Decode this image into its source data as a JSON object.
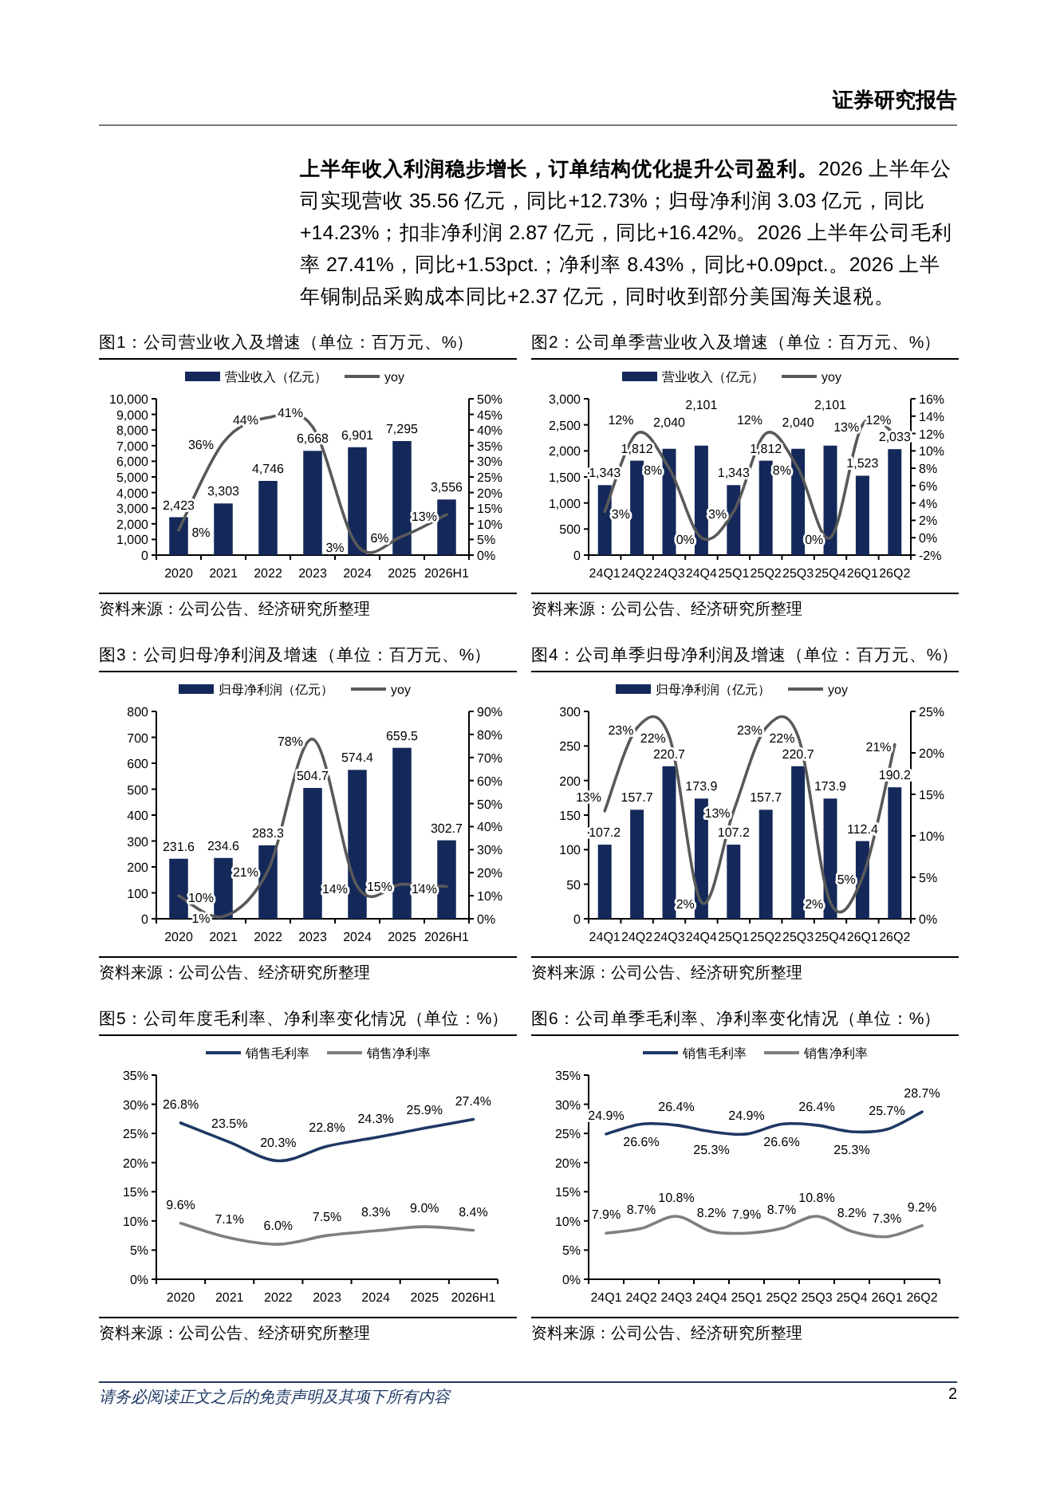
{
  "chart_data": [
    {
      "type": "other",
      "annotations": [
        "证券研究报告",
        "上半年收入利润稳步增长，订单结构优化提升公司盈利。",
        "2026 上半年公司实现营收 35.56 亿元，同比+12.73%；归母净利润 3.03 亿元，同比+14.23%；扣非净利润 2.87 亿元，同比+16.42%。2026 上半年公司毛利率 27.41%，同比+1.53pct.；净利率 8.43%，同比+0.09pct.。2026 上半年铜制品采购成本同比+2.37 亿元，同时收到部分美国海关退税。",
        "请务必阅读正文之后的免责声明及其项下所有内容",
        "2"
      ]
    },
    {
      "type": "bar",
      "title": "图1：公司营业收入及增速（单位：百万元、%）",
      "categories": [
        "2020",
        "2021",
        "2022",
        "2023",
        "2024",
        "2025",
        "2026H1"
      ],
      "series": [
        {
          "name": "营业收入（亿元）",
          "color": "#14295a",
          "values": [
            2423,
            3303,
            4746,
            6668,
            6901,
            7295,
            3556
          ],
          "value_labels": [
            "2,423",
            "3,303",
            "4,746",
            "6,668",
            "6,901",
            "7,295",
            "3,556"
          ]
        },
        {
          "name": "yoy",
          "type": "line",
          "axis": "y2",
          "color": "#595959",
          "values": [
            8,
            36,
            44,
            41,
            3,
            6,
            13
          ],
          "value_labels": [
            "8%",
            "36%",
            "44%",
            "41%",
            "3%",
            "6%",
            "13%"
          ]
        }
      ],
      "ylim": [
        0,
        10000
      ],
      "yticks": [
        0,
        {
          "value": 1000,
          "label": "1,000"
        },
        {
          "value": 2000,
          "label": "2,000"
        },
        {
          "value": 3000,
          "label": "3,000"
        },
        {
          "value": 4000,
          "label": "4,000"
        },
        {
          "value": 5000,
          "label": "5,000"
        },
        {
          "value": 6000,
          "label": "6,000"
        },
        {
          "value": 7000,
          "label": "7,000"
        },
        {
          "value": 8000,
          "label": "8,000"
        },
        {
          "value": 9000,
          "label": "9,000"
        },
        {
          "value": 10000,
          "label": "10,000"
        }
      ],
      "y2lim": [
        0,
        50
      ],
      "y2ticks": [
        {
          "value": 0,
          "label": "0%"
        },
        {
          "value": 5,
          "label": "5%"
        },
        {
          "value": 10,
          "label": "10%"
        },
        {
          "value": 15,
          "label": "15%"
        },
        {
          "value": 20,
          "label": "20%"
        },
        {
          "value": 25,
          "label": "25%"
        },
        {
          "value": 30,
          "label": "30%"
        },
        {
          "value": 35,
          "label": "35%"
        },
        {
          "value": 40,
          "label": "40%"
        },
        {
          "value": 45,
          "label": "45%"
        },
        {
          "value": 50,
          "label": "50%"
        }
      ],
      "legend": "top",
      "annotations": [
        "资料来源：公司公告、经济研究所整理"
      ]
    },
    {
      "type": "bar",
      "title": "图2：公司单季营业收入及增速（单位：百万元、%）",
      "categories": [
        "24Q1",
        "24Q2",
        "24Q3",
        "24Q4",
        "25Q1",
        "25Q2",
        "25Q3",
        "25Q4",
        "26Q1",
        "26Q2"
      ],
      "series": [
        {
          "name": "营业收入（亿元）",
          "color": "#14295a",
          "values": [
            1343,
            1812,
            2040,
            2101,
            1343,
            1812,
            2040,
            2101,
            1523,
            2033
          ],
          "value_labels": [
            "1,343",
            "1,812",
            "2,040",
            "2,101",
            "1,343",
            "1,812",
            "2,040",
            "2,101",
            "1,523",
            "2,033"
          ]
        },
        {
          "name": "yoy",
          "type": "line",
          "axis": "y2",
          "color": "#595959",
          "values": [
            3,
            12,
            8,
            0,
            3,
            12,
            8,
            0,
            13,
            12
          ],
          "value_labels": [
            "3%",
            "12%",
            "8%",
            "0%",
            "3%",
            "12%",
            "8%",
            "0%",
            "13%",
            "12%"
          ]
        }
      ],
      "ylim": [
        0,
        3000
      ],
      "yticks": [
        0,
        500,
        {
          "value": 1000,
          "label": "1,000"
        },
        {
          "value": 1500,
          "label": "1,500"
        },
        {
          "value": 2000,
          "label": "2,000"
        },
        {
          "value": 2500,
          "label": "2,500"
        },
        {
          "value": 3000,
          "label": "3,000"
        }
      ],
      "y2lim": [
        -2,
        16
      ],
      "y2ticks": [
        {
          "value": -2,
          "label": "-2%"
        },
        {
          "value": 0,
          "label": "0%"
        },
        {
          "value": 2,
          "label": "2%"
        },
        {
          "value": 4,
          "label": "4%"
        },
        {
          "value": 6,
          "label": "6%"
        },
        {
          "value": 8,
          "label": "8%"
        },
        {
          "value": 10,
          "label": "10%"
        },
        {
          "value": 12,
          "label": "12%"
        },
        {
          "value": 14,
          "label": "14%"
        },
        {
          "value": 16,
          "label": "16%"
        }
      ],
      "legend": "top",
      "annotations": [
        "资料来源：公司公告、经济研究所整理"
      ]
    },
    {
      "type": "bar",
      "title": "图3：公司归母净利润及增速（单位：百万元、%）",
      "categories": [
        "2020",
        "2021",
        "2022",
        "2023",
        "2024",
        "2025",
        "2026H1"
      ],
      "series": [
        {
          "name": "归母净利润（亿元）",
          "color": "#14295a",
          "values": [
            231.6,
            234.6,
            283.3,
            504.7,
            574.4,
            659.5,
            302.7
          ],
          "value_labels": [
            "231.6",
            "234.6",
            "283.3",
            "504.7",
            "574.4",
            "659.5",
            "302.7"
          ]
        },
        {
          "name": "yoy",
          "type": "line",
          "axis": "y2",
          "color": "#595959",
          "values": [
            10,
            1,
            21,
            78,
            14,
            15,
            14
          ],
          "value_labels": [
            "10%",
            "1%",
            "21%",
            "78%",
            "14%",
            "15%",
            "14%"
          ]
        }
      ],
      "ylim": [
        0,
        800
      ],
      "yticks": [
        0,
        100,
        200,
        300,
        400,
        500,
        600,
        700,
        800
      ],
      "y2lim": [
        0,
        90
      ],
      "y2ticks": [
        {
          "value": 0,
          "label": "0%"
        },
        {
          "value": 10,
          "label": "10%"
        },
        {
          "value": 20,
          "label": "20%"
        },
        {
          "value": 30,
          "label": "30%"
        },
        {
          "value": 40,
          "label": "40%"
        },
        {
          "value": 50,
          "label": "50%"
        },
        {
          "value": 60,
          "label": "60%"
        },
        {
          "value": 70,
          "label": "70%"
        },
        {
          "value": 80,
          "label": "80%"
        },
        {
          "value": 90,
          "label": "90%"
        }
      ],
      "legend": "top",
      "annotations": [
        "资料来源：公司公告、经济研究所整理"
      ]
    },
    {
      "type": "bar",
      "title": "图4：公司单季归母净利润及增速（单位：百万元、%）",
      "categories": [
        "24Q1",
        "24Q2",
        "24Q3",
        "24Q4",
        "25Q1",
        "25Q2",
        "25Q3",
        "25Q4",
        "26Q1",
        "26Q2"
      ],
      "series": [
        {
          "name": "归母净利润（亿元）",
          "color": "#14295a",
          "values": [
            107.2,
            157.7,
            220.7,
            173.9,
            107.2,
            157.7,
            220.7,
            173.9,
            112.4,
            190.2
          ],
          "value_labels": [
            "107.2",
            "157.7",
            "220.7",
            "173.9",
            "107.2",
            "157.7",
            "220.7",
            "173.9",
            "112.4",
            "190.2"
          ]
        },
        {
          "name": "yoy",
          "type": "line",
          "axis": "y2",
          "color": "#595959",
          "values": [
            13,
            23,
            22,
            2,
            13,
            23,
            22,
            2,
            5,
            21
          ],
          "value_labels": [
            "13%",
            "23%",
            "22%",
            "2%",
            "13%",
            "23%",
            "22%",
            "2%",
            "5%",
            "21%"
          ]
        }
      ],
      "ylim": [
        0,
        300
      ],
      "yticks": [
        0,
        50,
        100,
        150,
        200,
        250,
        300
      ],
      "y2lim": [
        0,
        25
      ],
      "y2ticks": [
        {
          "value": 0,
          "label": "0%"
        },
        {
          "value": 5,
          "label": "5%"
        },
        {
          "value": 10,
          "label": "10%"
        },
        {
          "value": 15,
          "label": "15%"
        },
        {
          "value": 20,
          "label": "20%"
        },
        {
          "value": 25,
          "label": "25%"
        }
      ],
      "legend": "top",
      "annotations": [
        "资料来源：公司公告、经济研究所整理"
      ]
    },
    {
      "type": "line",
      "title": "图5：公司年度毛利率、净利率变化情况（单位：%）",
      "categories": [
        "2020",
        "2021",
        "2022",
        "2023",
        "2024",
        "2025",
        "2026H1"
      ],
      "series": [
        {
          "name": "销售毛利率",
          "color": "#1f3864",
          "values": [
            26.8,
            23.5,
            20.3,
            22.8,
            24.3,
            25.9,
            27.4
          ],
          "value_labels": [
            "26.8%",
            "23.5%",
            "20.3%",
            "22.8%",
            "24.3%",
            "25.9%",
            "27.4%"
          ]
        },
        {
          "name": "销售净利率",
          "color": "#7f7f7f",
          "values": [
            9.6,
            7.1,
            6.0,
            7.5,
            8.3,
            9.0,
            8.4
          ],
          "value_labels": [
            "9.6%",
            "7.1%",
            "6.0%",
            "7.5%",
            "8.3%",
            "9.0%",
            "8.4%"
          ]
        }
      ],
      "ylim": [
        0,
        35
      ],
      "yticks": [
        {
          "value": 0,
          "label": "0%"
        },
        {
          "value": 5,
          "label": "5%"
        },
        {
          "value": 10,
          "label": "10%"
        },
        {
          "value": 15,
          "label": "15%"
        },
        {
          "value": 20,
          "label": "20%"
        },
        {
          "value": 25,
          "label": "25%"
        },
        {
          "value": 30,
          "label": "30%"
        },
        {
          "value": 35,
          "label": "35%"
        }
      ],
      "legend": "top",
      "annotations": [
        "资料来源：公司公告、经济研究所整理"
      ]
    },
    {
      "type": "line",
      "title": "图6：公司单季毛利率、净利率变化情况（单位：%）",
      "categories": [
        "24Q1",
        "24Q2",
        "24Q3",
        "24Q4",
        "25Q1",
        "25Q2",
        "25Q3",
        "25Q4",
        "26Q1",
        "26Q2"
      ],
      "series": [
        {
          "name": "销售毛利率",
          "color": "#1f3864",
          "values": [
            24.9,
            26.6,
            26.4,
            25.3,
            24.9,
            26.6,
            26.4,
            25.3,
            25.7,
            28.7
          ],
          "value_labels": [
            "24.9%",
            "26.6%",
            "26.4%",
            "25.3%",
            "24.9%",
            "26.6%",
            "26.4%",
            "25.3%",
            "25.7%",
            "28.7%"
          ]
        },
        {
          "name": "销售净利率",
          "color": "#7f7f7f",
          "values": [
            7.9,
            8.7,
            10.8,
            8.2,
            7.9,
            8.7,
            10.8,
            8.2,
            7.3,
            9.2
          ],
          "value_labels": [
            "7.9%",
            "8.7%",
            "10.8%",
            "8.2%",
            "7.9%",
            "8.7%",
            "10.8%",
            "8.2%",
            "7.3%",
            "9.2%"
          ]
        }
      ],
      "ylim": [
        0,
        35
      ],
      "yticks": [
        {
          "value": 0,
          "label": "0%"
        },
        {
          "value": 5,
          "label": "5%"
        },
        {
          "value": 10,
          "label": "10%"
        },
        {
          "value": 15,
          "label": "15%"
        },
        {
          "value": 20,
          "label": "20%"
        },
        {
          "value": 25,
          "label": "25%"
        },
        {
          "value": 30,
          "label": "30%"
        },
        {
          "value": 35,
          "label": "35%"
        }
      ],
      "legend": "top",
      "annotations": [
        "资料来源：公司公告、经济研究所整理"
      ]
    }
  ]
}
